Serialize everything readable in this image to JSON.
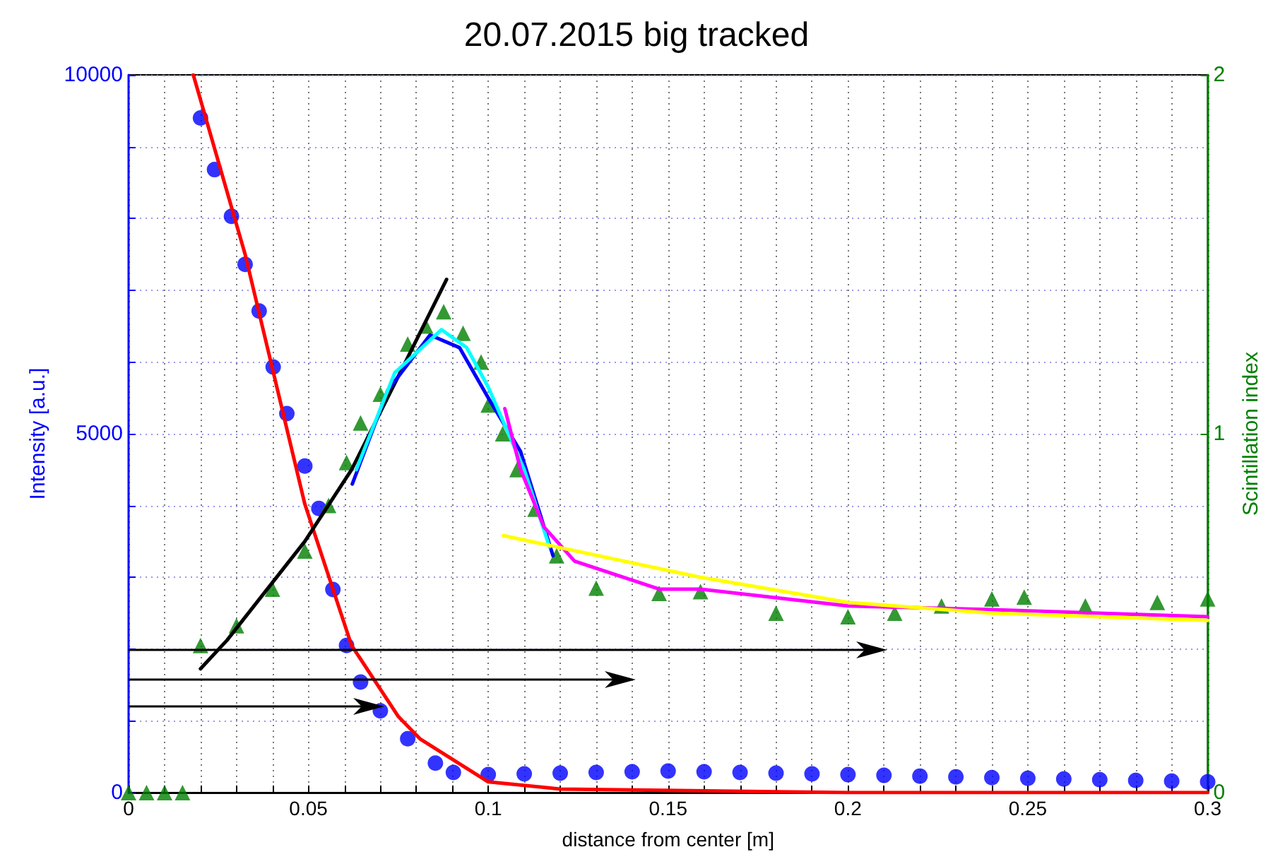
{
  "chart_data": {
    "type": "scatter",
    "title": "20.07.2015 big tracked",
    "xlabel": "distance from center [m]",
    "ylabel": "Intensity [a.u.]",
    "y2label": "Scintillation index",
    "xlim": [
      0,
      0.3
    ],
    "xticks": [
      0,
      {
        "value": 0.01,
        "label": null
      },
      {
        "value": 0.02,
        "label": null
      },
      {
        "value": 0.03,
        "label": null
      },
      {
        "value": 0.04,
        "label": null
      },
      0.05,
      {
        "value": 0.06,
        "label": null
      },
      {
        "value": 0.07,
        "label": null
      },
      {
        "value": 0.08,
        "label": null
      },
      {
        "value": 0.09,
        "label": null
      },
      0.1,
      {
        "value": 0.11,
        "label": null
      },
      {
        "value": 0.12,
        "label": null
      },
      {
        "value": 0.13,
        "label": null
      },
      {
        "value": 0.14,
        "label": null
      },
      0.15,
      {
        "value": 0.16,
        "label": null
      },
      {
        "value": 0.17,
        "label": null
      },
      {
        "value": 0.18,
        "label": null
      },
      {
        "value": 0.19,
        "label": null
      },
      0.2,
      {
        "value": 0.21,
        "label": null
      },
      {
        "value": 0.22,
        "label": null
      },
      {
        "value": 0.23,
        "label": null
      },
      {
        "value": 0.24,
        "label": null
      },
      0.25,
      {
        "value": 0.26,
        "label": null
      },
      {
        "value": 0.27,
        "label": null
      },
      {
        "value": 0.28,
        "label": null
      },
      {
        "value": 0.29,
        "label": null
      },
      0.3
    ],
    "ylim": [
      0,
      10000
    ],
    "yticks": [
      0,
      {
        "value": 1000,
        "label": null
      },
      {
        "value": 2000,
        "label": null
      },
      {
        "value": 3000,
        "label": null
      },
      {
        "value": 4000,
        "label": null
      },
      5000,
      {
        "value": 6000,
        "label": null
      },
      {
        "value": 7000,
        "label": null
      },
      {
        "value": 8000,
        "label": null
      },
      {
        "value": 9000,
        "label": null
      },
      10000
    ],
    "y2lim": [
      0,
      2
    ],
    "y2ticks": [
      0,
      1,
      2
    ],
    "grid": true,
    "series": [
      {
        "marker": "circle",
        "color": "#0000ff",
        "x": [
          0.02,
          0.0239,
          0.0286,
          0.0324,
          0.0363,
          0.0402,
          0.044,
          0.049,
          0.0529,
          0.0568,
          0.0606,
          0.0645,
          0.07,
          0.0776,
          0.0853,
          0.0903,
          0.1,
          0.11,
          0.12,
          0.13,
          0.14,
          0.15,
          0.16,
          0.17,
          0.18,
          0.19,
          0.2,
          0.21,
          0.22,
          0.23,
          0.24,
          0.25,
          0.26,
          0.27,
          0.28,
          0.29,
          0.3
        ],
        "values": [
          9400,
          8680,
          8030,
          7360,
          6710,
          5930,
          5280,
          4550,
          3960,
          2830,
          2050,
          1540,
          1140,
          750,
          410,
          280,
          250,
          260,
          270,
          280,
          290,
          300,
          290,
          280,
          270,
          260,
          250,
          240,
          230,
          220,
          210,
          200,
          190,
          180,
          170,
          160,
          150
        ]
      },
      {
        "type": "line",
        "marker": "none",
        "color": "#ff0000",
        "x": [
          0.018,
          0.0324,
          0.049,
          0.062,
          0.075,
          0.081,
          0.1,
          0.12,
          0.2,
          0.3
        ],
        "values": [
          10000,
          7500,
          4020,
          2050,
          1060,
          750,
          150,
          50,
          0,
          0
        ]
      },
      {
        "axis": "y2",
        "marker": "triangle",
        "color": "#008000",
        "x": [
          0,
          0.005,
          0.01,
          0.015,
          0.02,
          0.03,
          0.04,
          0.049,
          0.0556,
          0.0606,
          0.0645,
          0.07,
          0.0776,
          0.0826,
          0.0876,
          0.093,
          0.098,
          0.1,
          0.104,
          0.108,
          0.113,
          0.119,
          0.13,
          0.1475,
          0.159,
          0.18,
          0.2,
          0.213,
          0.226,
          0.24,
          0.249,
          0.266,
          0.286,
          0.3
        ],
        "values": [
          0,
          0,
          0,
          0,
          0.41,
          0.465,
          0.567,
          0.673,
          0.8,
          0.92,
          1.03,
          1.11,
          1.25,
          1.3,
          1.34,
          1.28,
          1.2,
          1.08,
          1.0,
          0.9,
          0.79,
          0.66,
          0.57,
          0.555,
          0.56,
          0.5,
          0.49,
          0.5,
          0.52,
          0.54,
          0.545,
          0.52,
          0.53,
          0.54
        ]
      },
      {
        "type": "line",
        "axis": "y2",
        "marker": "none",
        "color": "#000000",
        "x": [
          0.02,
          0.0274,
          0.049,
          0.062,
          0.075,
          0.0884
        ],
        "values": [
          0.345,
          0.425,
          0.7,
          0.9,
          1.16,
          1.43
        ]
      },
      {
        "type": "line",
        "axis": "y2",
        "marker": "none",
        "color": "#0000ff",
        "x": [
          0.0622,
          0.072,
          0.0838,
          0.092,
          0.1,
          0.109,
          0.118
        ],
        "values": [
          0.86,
          1.12,
          1.275,
          1.24,
          1.1,
          0.95,
          0.66
        ]
      },
      {
        "type": "line",
        "axis": "y2",
        "marker": "none",
        "color": "#00ffff",
        "x": [
          0.0633,
          0.074,
          0.087,
          0.094,
          0.1,
          0.11,
          0.117
        ],
        "values": [
          0.9,
          1.17,
          1.29,
          1.24,
          1.13,
          0.9,
          0.685
        ]
      },
      {
        "type": "line",
        "axis": "y2",
        "marker": "none",
        "color": "#ff00ff",
        "x": [
          0.1046,
          0.109,
          0.1155,
          0.124,
          0.1475,
          0.159,
          0.2,
          0.24,
          0.3
        ],
        "values": [
          1.07,
          0.9,
          0.74,
          0.645,
          0.567,
          0.567,
          0.52,
          0.51,
          0.49
        ]
      },
      {
        "type": "line",
        "axis": "y2",
        "marker": "none",
        "color": "#ffff00",
        "x": [
          0.1042,
          0.159,
          0.2,
          0.24,
          0.3
        ],
        "values": [
          0.716,
          0.6,
          0.53,
          0.5,
          0.48
        ]
      }
    ]
  }
}
